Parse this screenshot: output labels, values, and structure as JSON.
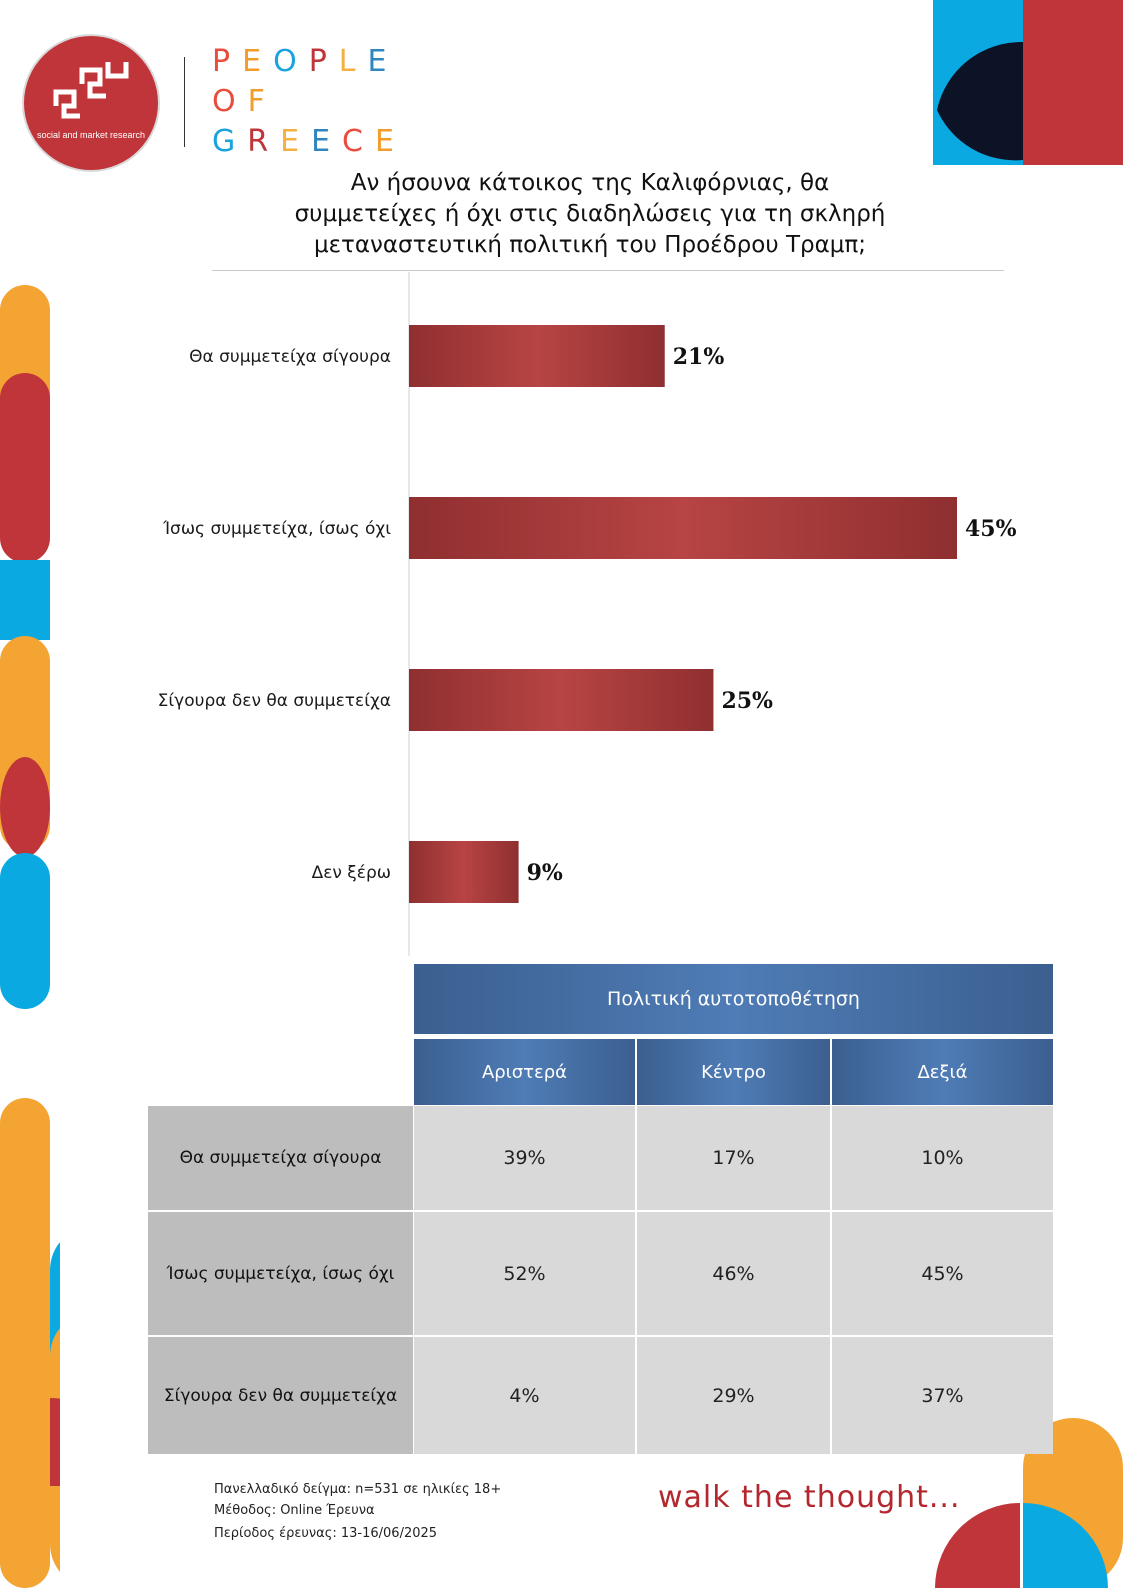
{
  "brand": {
    "tagline": "social and market research",
    "name_lines": [
      "PEOPLE",
      "OF",
      "GREECE"
    ],
    "letter_colors": [
      "#e84d3d",
      "#f39c2a",
      "#1aa3dd",
      "#c0353a",
      "#f5b041",
      "#2e86c1"
    ],
    "slogan": "walk the thought..."
  },
  "chart_data": {
    "type": "bar",
    "orientation": "horizontal",
    "title": "Αν ήσουνα κάτοικος της Καλιφόρνιας, θα συμμετείχες ή όχι στις διαδηλώσεις για τη σκληρή μεταναστευτική πολιτική του Προέδρου Τραμπ;",
    "title_lines": [
      "Αν ήσουνα κάτοικος της Καλιφόρνιας, θα",
      "συμμετείχες ή όχι στις διαδηλώσεις για τη σκληρή",
      "μεταναστευτική πολιτική του Προέδρου Τραμπ;"
    ],
    "categories": [
      "Θα συμμετείχα σίγουρα",
      "Ίσως συμμετείχα, ίσως όχι",
      "Σίγουρα δεν θα συμμετείχα",
      "Δεν ξέρω"
    ],
    "values": [
      21,
      45,
      25,
      9
    ],
    "value_labels": [
      "21%",
      "45%",
      "25%",
      "9%"
    ],
    "unit": "%",
    "xlim": [
      0,
      45
    ],
    "bar_color": "#b34040",
    "grid": false,
    "legend": "none"
  },
  "table": {
    "group_header": "Πολιτική αυτοτοποθέτηση",
    "columns": [
      "Αριστερά",
      "Κέντρο",
      "Δεξιά"
    ],
    "rows": [
      {
        "label": "Θα συμμετείχα σίγουρα",
        "values": [
          "39%",
          "17%",
          "10%"
        ]
      },
      {
        "label": "Ίσως συμμετείχα, ίσως όχι",
        "values": [
          "52%",
          "46%",
          "45%"
        ]
      },
      {
        "label": "Σίγουρα δεν θα συμμετείχα",
        "values": [
          "4%",
          "29%",
          "37%"
        ]
      }
    ]
  },
  "footer": {
    "sample": "Πανελλαδικό δείγμα: n=531 σε ηλικίες 18+",
    "method": "Μέθοδος: Online Έρευνα",
    "period": "Περίοδος έρευνας: 13-16/06/2025"
  }
}
